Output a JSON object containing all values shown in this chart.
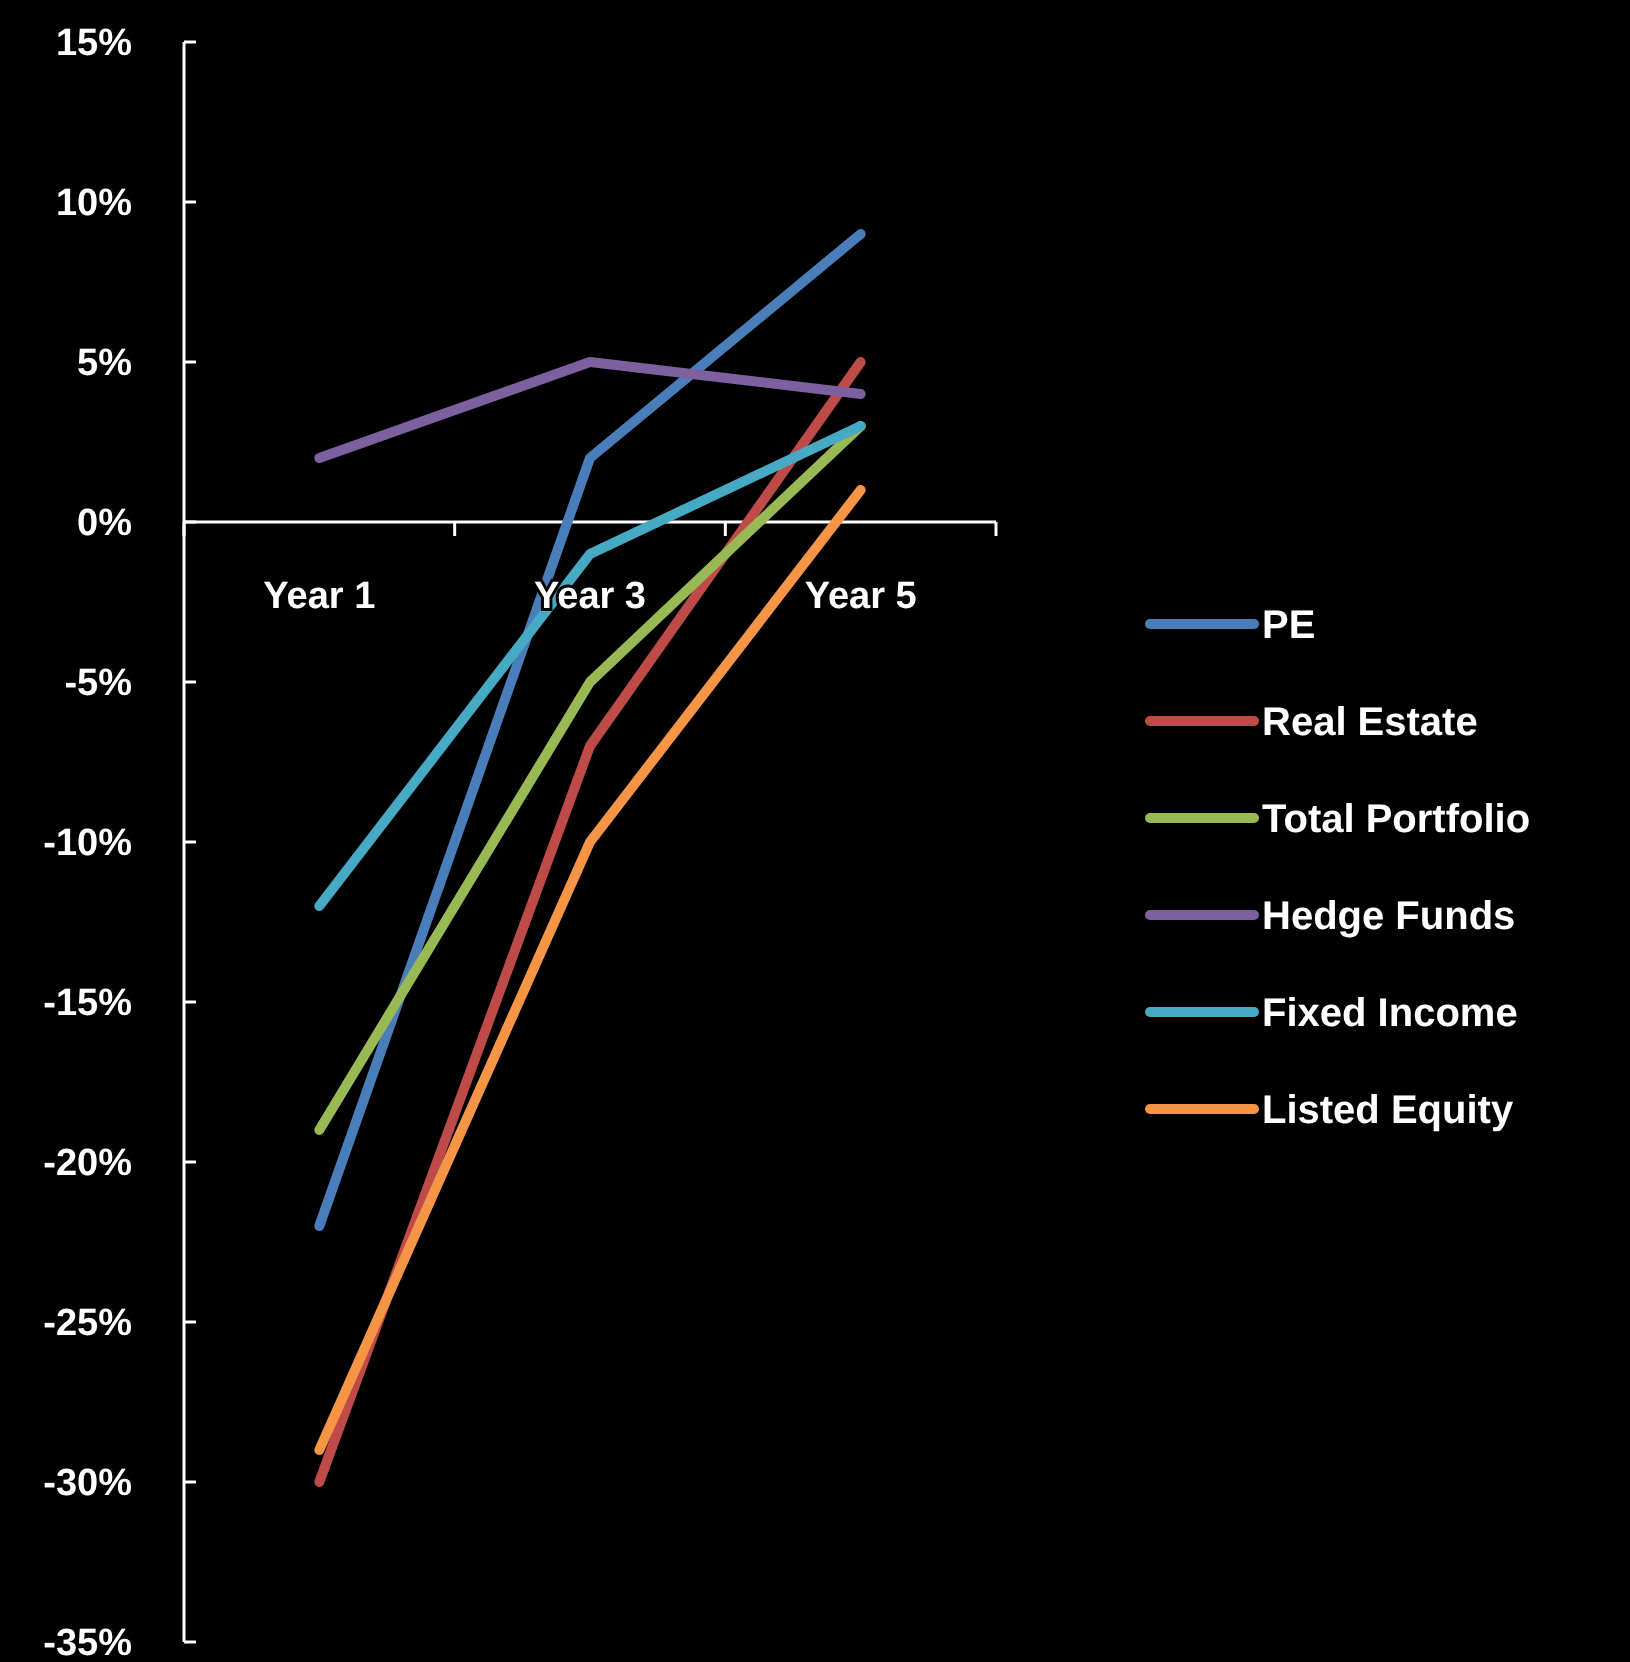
{
  "chart_data": {
    "type": "line",
    "categories": [
      "Year 1",
      "Year 3",
      "Year 5"
    ],
    "series": [
      {
        "name": "PE",
        "color": "#4a7ebb",
        "values": [
          -22,
          2,
          9
        ]
      },
      {
        "name": "Real Estate",
        "color": "#be4b48",
        "values": [
          -30,
          -7,
          5
        ]
      },
      {
        "name": "Total Portfolio",
        "color": "#98b954",
        "values": [
          -19,
          -5,
          3
        ]
      },
      {
        "name": "Hedge Funds",
        "color": "#7d60a0",
        "values": [
          2,
          5,
          4
        ]
      },
      {
        "name": "Fixed Income",
        "color": "#46aac5",
        "values": [
          -12,
          -1,
          3
        ]
      },
      {
        "name": "Listed Equity",
        "color": "#f69545",
        "values": [
          -29,
          -10,
          1
        ]
      }
    ],
    "ylim": [
      -35,
      15
    ],
    "yticks": [
      {
        "value": -35,
        "label": "-35%"
      },
      {
        "value": -30,
        "label": "-30%"
      },
      {
        "value": -25,
        "label": "-25%"
      },
      {
        "value": -20,
        "label": "-20%"
      },
      {
        "value": -15,
        "label": "-15%"
      },
      {
        "value": -10,
        "label": "-10%"
      },
      {
        "value": -5,
        "label": "-5%"
      },
      {
        "value": 0,
        "label": "0%"
      },
      {
        "value": 5,
        "label": "5%"
      },
      {
        "value": 10,
        "label": "10%"
      },
      {
        "value": 15,
        "label": "15%"
      }
    ],
    "grid": false,
    "legend": "right",
    "marker": "none",
    "line_style": "solid"
  }
}
